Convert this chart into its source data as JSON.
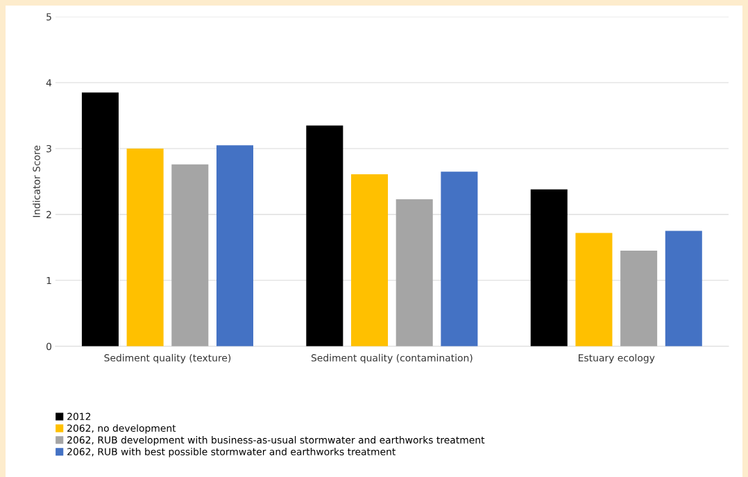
{
  "chart_data": {
    "type": "bar",
    "ylabel": "Indicator Score",
    "categories": [
      "Sediment quality (texture)",
      "Sediment quality (contamination)",
      "Estuary ecology"
    ],
    "series": [
      {
        "name": "2012",
        "color": "#000000",
        "values": [
          3.85,
          3.35,
          2.38
        ]
      },
      {
        "name": "2062, no development",
        "color": "#ffc000",
        "values": [
          3.0,
          2.61,
          1.72
        ]
      },
      {
        "name": "2062, RUB development with business-as-usual stormwater and earthworks treatment",
        "color": "#a5a5a5",
        "values": [
          2.76,
          2.23,
          1.45
        ]
      },
      {
        "name": "2062, RUB with best possible stormwater and earthworks treatment",
        "color": "#4472c4",
        "values": [
          3.05,
          2.65,
          1.75
        ]
      }
    ],
    "ylim": [
      0,
      5
    ],
    "yticks": [
      0,
      1,
      2,
      3,
      4,
      5
    ],
    "grid": "y",
    "legend": "bottom"
  }
}
